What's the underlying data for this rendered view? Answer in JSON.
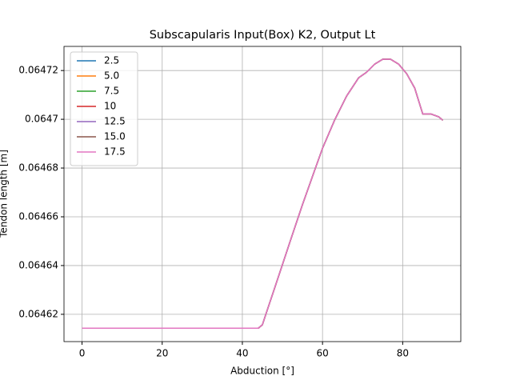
{
  "chart_data": {
    "type": "line",
    "title": "Subscapularis Input(Box) K2, Output Lt",
    "x_label": "Abduction [°]",
    "y_label": "Tendon length [m]",
    "x": [
      0,
      10,
      20,
      30,
      40,
      44,
      45,
      46,
      48,
      50,
      52,
      55,
      58,
      60,
      63,
      66,
      69,
      71,
      73,
      75,
      77,
      79,
      81,
      83,
      85,
      87,
      89,
      90
    ],
    "series": [
      {
        "name": "2.5",
        "color": "#1f77b4",
        "values": [
          0.0646143,
          0.0646143,
          0.0646143,
          0.0646143,
          0.0646143,
          0.0646143,
          0.0646157,
          0.0646207,
          0.0646305,
          0.0646404,
          0.0646503,
          0.064665,
          0.0646789,
          0.0646881,
          0.0646996,
          0.0647095,
          0.064717,
          0.0647193,
          0.0647226,
          0.0647246,
          0.0647246,
          0.0647226,
          0.0647187,
          0.0647128,
          0.0647022,
          0.0647022,
          0.064701,
          0.0646996
        ]
      },
      {
        "name": "5.0",
        "color": "#ff7f0e",
        "values": [
          0.0646143,
          0.0646143,
          0.0646143,
          0.0646143,
          0.0646143,
          0.0646143,
          0.0646157,
          0.0646207,
          0.0646305,
          0.0646404,
          0.0646503,
          0.064665,
          0.0646789,
          0.0646881,
          0.0646996,
          0.0647095,
          0.064717,
          0.0647193,
          0.0647226,
          0.0647246,
          0.0647246,
          0.0647226,
          0.0647187,
          0.0647128,
          0.0647022,
          0.0647022,
          0.064701,
          0.0646996
        ]
      },
      {
        "name": "7.5",
        "color": "#2ca02c",
        "values": [
          0.0646143,
          0.0646143,
          0.0646143,
          0.0646143,
          0.0646143,
          0.0646143,
          0.0646157,
          0.0646207,
          0.0646305,
          0.0646404,
          0.0646503,
          0.064665,
          0.0646789,
          0.0646881,
          0.0646996,
          0.0647095,
          0.064717,
          0.0647193,
          0.0647226,
          0.0647246,
          0.0647246,
          0.0647226,
          0.0647187,
          0.0647128,
          0.0647022,
          0.0647022,
          0.064701,
          0.0646996
        ]
      },
      {
        "name": "10",
        "color": "#d62728",
        "values": [
          0.0646143,
          0.0646143,
          0.0646143,
          0.0646143,
          0.0646143,
          0.0646143,
          0.0646157,
          0.0646207,
          0.0646305,
          0.0646404,
          0.0646503,
          0.064665,
          0.0646789,
          0.0646881,
          0.0646996,
          0.0647095,
          0.064717,
          0.0647193,
          0.0647226,
          0.0647246,
          0.0647246,
          0.0647226,
          0.0647187,
          0.0647128,
          0.0647022,
          0.0647022,
          0.064701,
          0.0646996
        ]
      },
      {
        "name": "12.5",
        "color": "#9467bd",
        "values": [
          0.0646143,
          0.0646143,
          0.0646143,
          0.0646143,
          0.0646143,
          0.0646143,
          0.0646157,
          0.0646207,
          0.0646305,
          0.0646404,
          0.0646503,
          0.064665,
          0.0646789,
          0.0646881,
          0.0646996,
          0.0647095,
          0.064717,
          0.0647193,
          0.0647226,
          0.0647246,
          0.0647246,
          0.0647226,
          0.0647187,
          0.0647128,
          0.0647022,
          0.0647022,
          0.064701,
          0.0646996
        ]
      },
      {
        "name": "15.0",
        "color": "#8c564b",
        "values": [
          0.0646143,
          0.0646143,
          0.0646143,
          0.0646143,
          0.0646143,
          0.0646143,
          0.0646157,
          0.0646207,
          0.0646305,
          0.0646404,
          0.0646503,
          0.064665,
          0.0646789,
          0.0646881,
          0.0646996,
          0.0647095,
          0.064717,
          0.0647193,
          0.0647226,
          0.0647246,
          0.0647246,
          0.0647226,
          0.0647187,
          0.0647128,
          0.0647022,
          0.0647022,
          0.064701,
          0.0646996
        ]
      },
      {
        "name": "17.5",
        "color": "#e377c2",
        "values": [
          0.0646143,
          0.0646143,
          0.0646143,
          0.0646143,
          0.0646143,
          0.0646143,
          0.0646157,
          0.0646207,
          0.0646305,
          0.0646404,
          0.0646503,
          0.064665,
          0.0646789,
          0.0646881,
          0.0646996,
          0.0647095,
          0.064717,
          0.0647193,
          0.0647226,
          0.0647246,
          0.0647246,
          0.0647226,
          0.0647187,
          0.0647128,
          0.0647022,
          0.0647022,
          0.064701,
          0.0646996
        ]
      }
    ],
    "xlim": [
      -4.5,
      94.5
    ],
    "xticks": [
      0,
      20,
      40,
      60,
      80
    ],
    "ylim": [
      0.0646088,
      0.0647299
    ],
    "yticks": [
      0.06462,
      0.06464,
      0.06466,
      0.06468,
      0.0647,
      0.06472
    ],
    "grid": true,
    "legend": "upper left"
  }
}
